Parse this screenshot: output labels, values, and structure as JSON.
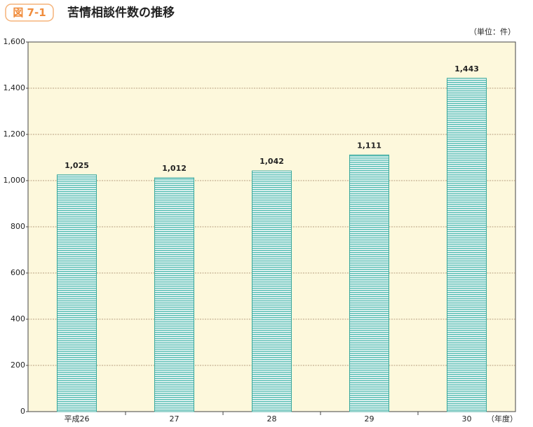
{
  "chart_data": {
    "type": "bar",
    "figure_label": "図 7-1",
    "title": "苦情相談件数の推移",
    "unit_label": "（単位：件）",
    "x_unit_label": "（年度）",
    "categories": [
      "平成26",
      "27",
      "28",
      "29",
      "30"
    ],
    "values": [
      1025,
      1012,
      1042,
      1111,
      1443
    ],
    "value_labels": [
      "1,025",
      "1,012",
      "1,042",
      "1,111",
      "1,443"
    ],
    "color": "#5cbfb5",
    "ylim": [
      0,
      1600
    ],
    "yticks": [
      0,
      200,
      400,
      600,
      800,
      {
        "value": 1000,
        "label": "1,000"
      },
      {
        "value": 1200,
        "label": "1,200"
      },
      {
        "value": 1400,
        "label": "1,400"
      },
      {
        "value": 1600,
        "label": "1,600"
      }
    ],
    "grid": true
  }
}
